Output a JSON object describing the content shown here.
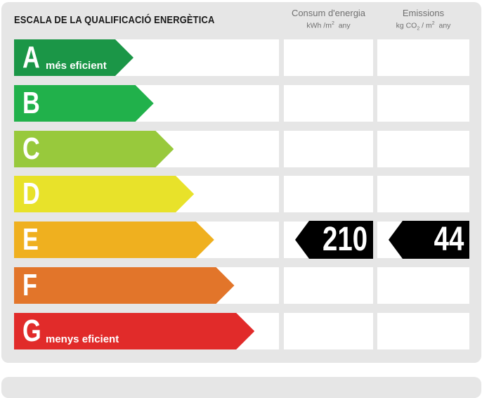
{
  "title": "ESCALA DE LA QUALIFICACIÓ ENERGÈTICA",
  "columns": {
    "consumption": {
      "label": "Consum d'energia",
      "unit_main": "kWh /m",
      "unit_sup": "2",
      "unit_tail": "any"
    },
    "emissions": {
      "label": "Emissions",
      "unit_main": "kg CO",
      "unit_sub": "2",
      "unit_mid": " / m",
      "unit_sup": "2",
      "unit_tail": "any"
    }
  },
  "chart_data": {
    "type": "table",
    "title": "ESCALA DE LA QUALIFICACIÓ ENERGÈTICA",
    "classes": [
      {
        "letter": "A",
        "label": "més eficient",
        "color": "#1b9647"
      },
      {
        "letter": "B",
        "label": "",
        "color": "#21b14b"
      },
      {
        "letter": "C",
        "label": "",
        "color": "#98c93c"
      },
      {
        "letter": "D",
        "label": "",
        "color": "#e8e22a"
      },
      {
        "letter": "E",
        "label": "",
        "color": "#efb01f"
      },
      {
        "letter": "F",
        "label": "",
        "color": "#e2752a"
      },
      {
        "letter": "G",
        "label": "menys eficient",
        "color": "#e12b2a"
      }
    ],
    "rating": {
      "class": "E",
      "consumption": "210",
      "emissions": "44"
    }
  }
}
